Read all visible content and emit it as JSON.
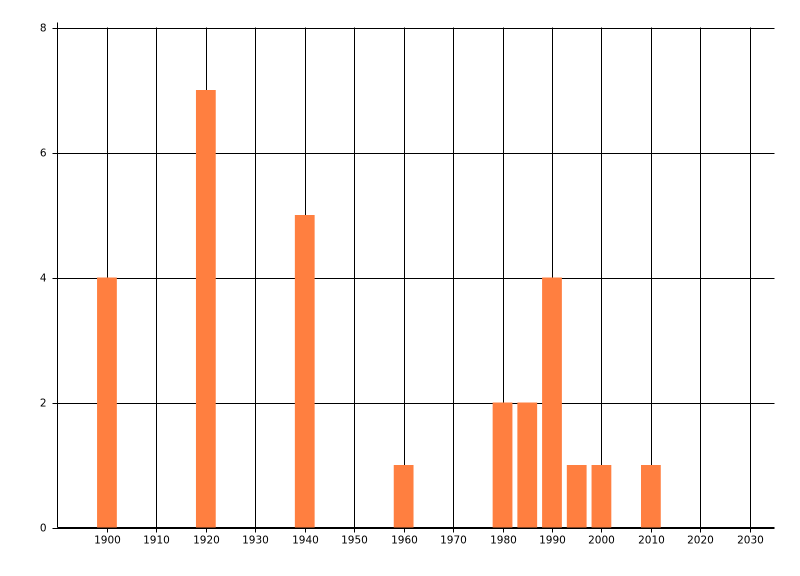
{
  "chart_data": {
    "type": "bar",
    "x": [
      1900,
      1920,
      1940,
      1960,
      1980,
      1985,
      1990,
      1995,
      2000,
      2010
    ],
    "values": [
      4,
      7,
      5,
      1,
      2,
      2,
      4,
      1,
      1,
      1
    ],
    "color": "#ff7f40",
    "xlim": [
      1890,
      2035
    ],
    "xticks": [
      1900,
      1910,
      1920,
      1930,
      1940,
      1950,
      1960,
      1970,
      1980,
      1990,
      2000,
      2010,
      2020,
      2030
    ],
    "ylim": [
      0,
      8
    ],
    "yticks": [
      0,
      2,
      4,
      6,
      8
    ],
    "grid": true
  }
}
